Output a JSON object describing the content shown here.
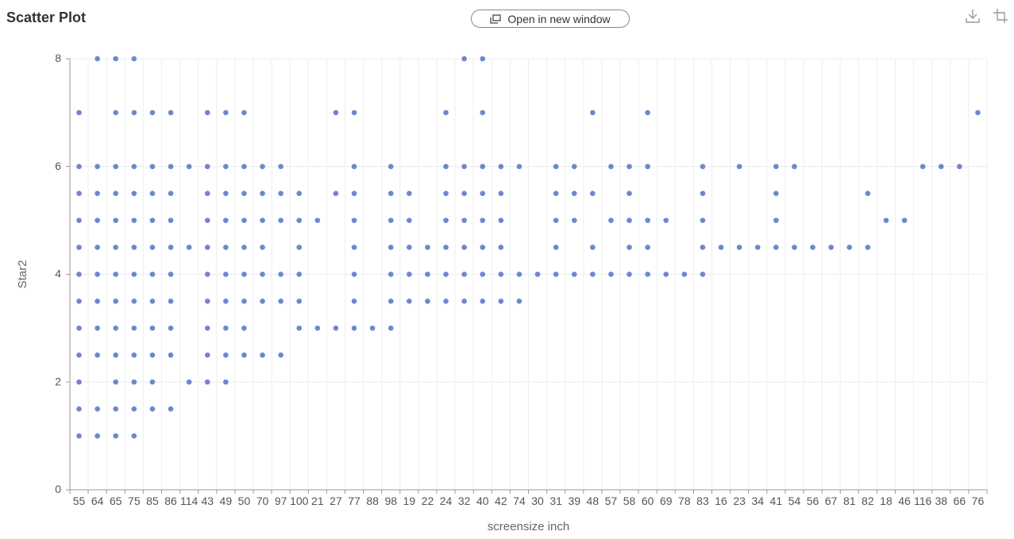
{
  "header": {
    "title": "Scatter Plot",
    "open_label": "Open in new window",
    "icons": [
      "open-window-icon",
      "download-icon",
      "crop-icon"
    ]
  },
  "chart_data": {
    "type": "scatter",
    "title": "Scatter Plot",
    "xlabel": "screensize inch",
    "ylabel": "Star2",
    "ylim": [
      0,
      8
    ],
    "yticks": [
      0,
      2,
      4,
      6,
      8
    ],
    "grid": true,
    "point_color": "#6f86cf",
    "categories": [
      "55",
      "64",
      "65",
      "75",
      "85",
      "86",
      "114",
      "43",
      "49",
      "50",
      "70",
      "97",
      "100",
      "21",
      "27",
      "77",
      "88",
      "98",
      "19",
      "22",
      "24",
      "32",
      "40",
      "42",
      "74",
      "30",
      "31",
      "39",
      "48",
      "57",
      "58",
      "60",
      "69",
      "78",
      "83",
      "16",
      "23",
      "34",
      "41",
      "54",
      "56",
      "67",
      "81",
      "82",
      "18",
      "46",
      "116",
      "38",
      "66",
      "76"
    ],
    "points": [
      [
        "55",
        [
          1,
          1.5,
          2,
          2.5,
          3,
          3.5,
          4,
          4.5,
          5,
          5.5,
          6,
          7
        ]
      ],
      [
        "64",
        [
          1,
          1.5,
          2.5,
          3,
          3.5,
          4,
          4.5,
          5,
          5.5,
          6,
          8
        ]
      ],
      [
        "65",
        [
          1,
          1.5,
          2,
          2.5,
          3,
          3.5,
          4,
          4.5,
          5,
          5.5,
          6,
          7,
          8
        ]
      ],
      [
        "75",
        [
          1,
          1.5,
          2,
          2.5,
          3,
          3.5,
          4,
          4.5,
          5,
          5.5,
          6,
          7,
          8
        ]
      ],
      [
        "85",
        [
          1.5,
          2,
          2.5,
          3,
          3.5,
          4,
          4.5,
          5,
          5.5,
          6,
          7
        ]
      ],
      [
        "86",
        [
          1.5,
          2.5,
          3,
          3.5,
          4,
          4.5,
          5,
          5.5,
          6,
          7
        ]
      ],
      [
        "114",
        [
          2,
          4.5,
          6
        ]
      ],
      [
        "43",
        [
          2,
          2.5,
          3,
          3.5,
          4,
          4.5,
          5,
          5.5,
          6,
          7
        ]
      ],
      [
        "49",
        [
          2,
          2.5,
          3,
          3.5,
          4,
          4.5,
          5,
          5.5,
          6,
          7
        ]
      ],
      [
        "50",
        [
          2.5,
          3,
          3.5,
          4,
          4.5,
          5,
          5.5,
          6,
          7
        ]
      ],
      [
        "70",
        [
          2.5,
          3.5,
          4,
          4.5,
          5,
          5.5,
          6
        ]
      ],
      [
        "97",
        [
          2.5,
          3.5,
          4,
          5,
          5.5,
          6
        ]
      ],
      [
        "100",
        [
          3,
          3.5,
          4,
          4.5,
          5,
          5.5
        ]
      ],
      [
        "21",
        [
          3,
          5
        ]
      ],
      [
        "27",
        [
          3,
          5.5,
          7
        ]
      ],
      [
        "77",
        [
          3,
          3.5,
          4,
          4.5,
          5,
          5.5,
          6,
          7
        ]
      ],
      [
        "88",
        [
          3
        ]
      ],
      [
        "98",
        [
          3,
          3.5,
          4,
          4.5,
          5,
          5.5,
          6
        ]
      ],
      [
        "19",
        [
          3.5,
          4,
          4.5,
          5,
          5.5
        ]
      ],
      [
        "22",
        [
          3.5,
          4,
          4.5
        ]
      ],
      [
        "24",
        [
          3.5,
          4,
          4.5,
          5,
          5.5,
          6,
          7
        ]
      ],
      [
        "32",
        [
          3.5,
          4,
          4.5,
          5,
          5.5,
          6,
          8
        ]
      ],
      [
        "40",
        [
          3.5,
          4,
          4.5,
          5,
          5.5,
          6,
          7,
          8
        ]
      ],
      [
        "42",
        [
          3.5,
          4,
          4.5,
          5,
          5.5,
          6
        ]
      ],
      [
        "74",
        [
          3.5,
          4,
          6
        ]
      ],
      [
        "30",
        [
          4
        ]
      ],
      [
        "31",
        [
          4,
          4.5,
          5,
          5.5,
          6
        ]
      ],
      [
        "39",
        [
          4,
          5,
          5.5,
          6
        ]
      ],
      [
        "48",
        [
          4,
          4.5,
          5.5,
          7
        ]
      ],
      [
        "57",
        [
          4,
          5,
          6
        ]
      ],
      [
        "58",
        [
          4,
          4.5,
          5,
          5.5,
          6
        ]
      ],
      [
        "60",
        [
          4,
          4.5,
          5,
          6,
          7
        ]
      ],
      [
        "69",
        [
          4,
          5
        ]
      ],
      [
        "78",
        [
          4
        ]
      ],
      [
        "83",
        [
          4,
          4.5,
          5,
          5.5,
          6
        ]
      ],
      [
        "16",
        [
          4.5
        ]
      ],
      [
        "23",
        [
          4.5,
          6
        ]
      ],
      [
        "34",
        [
          4.5
        ]
      ],
      [
        "41",
        [
          4.5,
          5,
          5.5,
          6
        ]
      ],
      [
        "54",
        [
          4.5,
          6
        ]
      ],
      [
        "56",
        [
          4.5
        ]
      ],
      [
        "67",
        [
          4.5
        ]
      ],
      [
        "81",
        [
          4.5
        ]
      ],
      [
        "82",
        [
          4.5,
          5.5
        ]
      ],
      [
        "18",
        [
          5
        ]
      ],
      [
        "46",
        [
          5
        ]
      ],
      [
        "116",
        [
          6
        ]
      ],
      [
        "38",
        [
          6
        ]
      ],
      [
        "66",
        [
          6
        ]
      ],
      [
        "76",
        [
          7
        ]
      ]
    ]
  }
}
